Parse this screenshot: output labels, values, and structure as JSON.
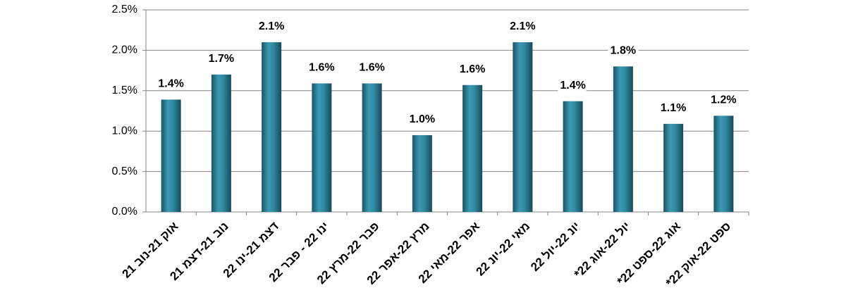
{
  "chart_data": {
    "type": "bar",
    "categories": [
      "אוק 21-נוב 21",
      "נוב 21-דצמ 21",
      "דצמ 21-ינו 22",
      "ינו 22 - פבר 22",
      "פבר 22-מרץ 22",
      "מרץ 22-אפר 22",
      "אפר 22-מאי 22",
      "מאי 22-יונ 22",
      "יונ 22-יול 22",
      "יול 22-אוג 22*",
      "אוג 22-ספט 22*",
      "ספט 22-אוק 22*"
    ],
    "values": [
      1.39,
      1.7,
      2.1,
      1.59,
      1.59,
      0.95,
      1.57,
      2.1,
      1.37,
      1.8,
      1.09,
      1.19
    ],
    "value_labels": [
      "1.4%",
      "1.7%",
      "2.1%",
      "1.6%",
      "1.6%",
      "1.0%",
      "1.6%",
      "2.1%",
      "1.4%",
      "1.8%",
      "1.1%",
      "1.2%"
    ],
    "color": "#2f8aa0",
    "ylim": [
      0,
      2.5
    ],
    "yticks": [
      {
        "value": 0,
        "label": "0.0%"
      },
      {
        "value": 0.5,
        "label": "0.5%"
      },
      {
        "value": 1,
        "label": "1.0%"
      },
      {
        "value": 1.5,
        "label": "1.5%"
      },
      {
        "value": 2,
        "label": "2.0%"
      },
      {
        "value": 2.5,
        "label": "2.5%"
      }
    ],
    "grid": true
  }
}
